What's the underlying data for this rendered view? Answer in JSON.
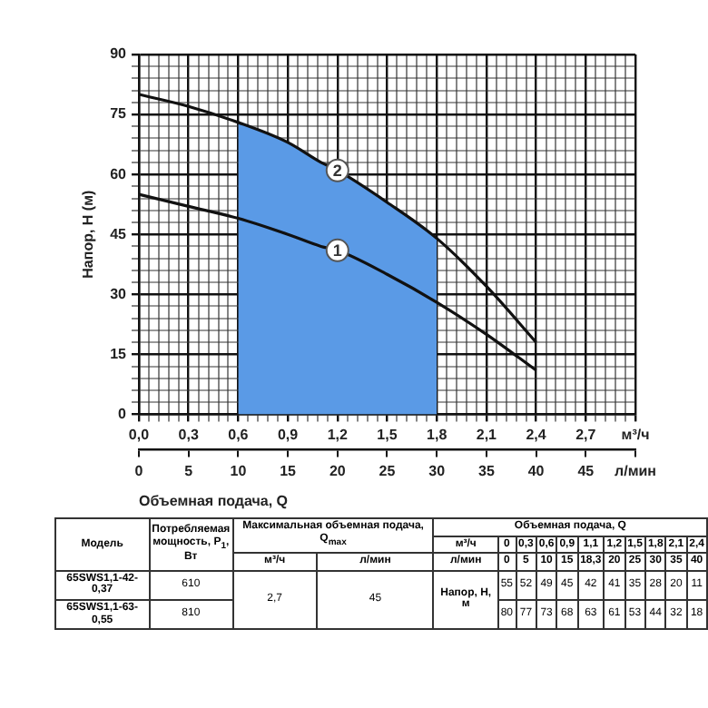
{
  "chart_data": {
    "type": "line",
    "xlabel": "Объемная подача, Q",
    "ylabel": "Напор, Н (м)",
    "x": [
      0,
      0.3,
      0.6,
      0.9,
      1.1,
      1.2,
      1.5,
      1.8,
      2.1,
      2.4
    ],
    "series": [
      {
        "name": "1",
        "color": "#111111",
        "values": [
          55,
          52,
          49,
          45,
          42,
          41,
          35,
          28,
          20,
          11
        ]
      },
      {
        "name": "2",
        "color": "#111111",
        "values": [
          80,
          77,
          73,
          68,
          63,
          61,
          53,
          44,
          32,
          18
        ]
      },
      {
        "type": "area",
        "color": "#5a9ae6",
        "x": [
          0.6,
          0.9,
          1.1,
          1.2,
          1.5,
          1.8
        ],
        "values": [
          73,
          68,
          63,
          61,
          53,
          44
        ]
      }
    ],
    "xlim": [
      0,
      3
    ],
    "xticks": [
      {
        "value": 0,
        "label": "0,0"
      },
      {
        "value": 0.06,
        "label": null
      },
      {
        "value": 0.12,
        "label": null
      },
      {
        "value": 0.18,
        "label": null
      },
      {
        "value": 0.24,
        "label": null
      },
      {
        "value": 0.3,
        "label": "0,3"
      },
      {
        "value": 0.36,
        "label": null
      },
      {
        "value": 0.42,
        "label": null
      },
      {
        "value": 0.48,
        "label": null
      },
      {
        "value": 0.54,
        "label": null
      },
      {
        "value": 0.6,
        "label": "0,6"
      },
      {
        "value": 0.66,
        "label": null
      },
      {
        "value": 0.72,
        "label": null
      },
      {
        "value": 0.78,
        "label": null
      },
      {
        "value": 0.84,
        "label": null
      },
      {
        "value": 0.9,
        "label": "0,9"
      },
      {
        "value": 0.96,
        "label": null
      },
      {
        "value": 1.02,
        "label": null
      },
      {
        "value": 1.08,
        "label": null
      },
      {
        "value": 1.14,
        "label": null
      },
      {
        "value": 1.2,
        "label": "1,2"
      },
      {
        "value": 1.26,
        "label": null
      },
      {
        "value": 1.32,
        "label": null
      },
      {
        "value": 1.38,
        "label": null
      },
      {
        "value": 1.44,
        "label": null
      },
      {
        "value": 1.5,
        "label": "1,5"
      },
      {
        "value": 1.56,
        "label": null
      },
      {
        "value": 1.62,
        "label": null
      },
      {
        "value": 1.68,
        "label": null
      },
      {
        "value": 1.74,
        "label": null
      },
      {
        "value": 1.8,
        "label": "1,8"
      },
      {
        "value": 1.86,
        "label": null
      },
      {
        "value": 1.92,
        "label": null
      },
      {
        "value": 1.98,
        "label": null
      },
      {
        "value": 2.04,
        "label": null
      },
      {
        "value": 2.1,
        "label": "2,1"
      },
      {
        "value": 2.16,
        "label": null
      },
      {
        "value": 2.22,
        "label": null
      },
      {
        "value": 2.28,
        "label": null
      },
      {
        "value": 2.34,
        "label": null
      },
      {
        "value": 2.4,
        "label": "2,4"
      },
      {
        "value": 2.46,
        "label": null
      },
      {
        "value": 2.52,
        "label": null
      },
      {
        "value": 2.58,
        "label": null
      },
      {
        "value": 2.64,
        "label": null
      },
      {
        "value": 2.7,
        "label": "2,7"
      },
      {
        "value": 2.76,
        "label": null
      },
      {
        "value": 2.82,
        "label": null
      },
      {
        "value": 2.88,
        "label": null
      },
      {
        "value": 2.94,
        "label": null
      },
      {
        "value": 3,
        "label": "м³/ч"
      }
    ],
    "x2lim": [
      0,
      50
    ],
    "x2ticks": [
      0,
      5,
      10,
      15,
      20,
      25,
      30,
      35,
      40,
      45,
      {
        "value": 50,
        "label": "л/мин"
      }
    ],
    "ylim": [
      0,
      90
    ],
    "yticks": [
      0,
      {
        "value": 3,
        "label": null
      },
      {
        "value": 6,
        "label": null
      },
      {
        "value": 9,
        "label": null
      },
      {
        "value": 12,
        "label": null
      },
      15,
      {
        "value": 18,
        "label": null
      },
      {
        "value": 21,
        "label": null
      },
      {
        "value": 24,
        "label": null
      },
      {
        "value": 27,
        "label": null
      },
      30,
      {
        "value": 33,
        "label": null
      },
      {
        "value": 36,
        "label": null
      },
      {
        "value": 39,
        "label": null
      },
      {
        "value": 42,
        "label": null
      },
      45,
      {
        "value": 48,
        "label": null
      },
      {
        "value": 51,
        "label": null
      },
      {
        "value": 54,
        "label": null
      },
      {
        "value": 57,
        "label": null
      },
      60,
      {
        "value": 63,
        "label": null
      },
      {
        "value": 66,
        "label": null
      },
      {
        "value": 69,
        "label": null
      },
      {
        "value": 72,
        "label": null
      },
      75,
      {
        "value": 78,
        "label": null
      },
      {
        "value": 81,
        "label": null
      },
      {
        "value": 84,
        "label": null
      },
      {
        "value": 87,
        "label": null
      },
      90
    ],
    "grid": true,
    "marker": "none",
    "line_style": "solid",
    "annotations": [
      "Модель",
      "Потребляемая мощность, P$_{1}$, Вт",
      "Максимальная объемная подача, Q$_{max}$",
      "м³/ч",
      "л/мин",
      "Объемная подача, Q",
      "м³/ч",
      "л/мин",
      "65SWS1,1-42-0,37",
      "65SWS1,1-63-0,55",
      "610",
      "810",
      "2,7",
      "45",
      "Напор, Н, м",
      "0",
      "0,3",
      "0,6",
      "0,9",
      "1,1",
      "1,2",
      "1,5",
      "1,8",
      "2,1",
      "2,4",
      "0",
      "5",
      "10",
      "15",
      "18,3",
      "20",
      "25",
      "30",
      "35",
      "40",
      "55",
      "52",
      "49",
      "45",
      "42",
      "41",
      "35",
      "28",
      "20",
      "11",
      "80",
      "77",
      "73",
      "68",
      "63",
      "61",
      "53",
      "44",
      "32",
      "18"
    ]
  }
}
